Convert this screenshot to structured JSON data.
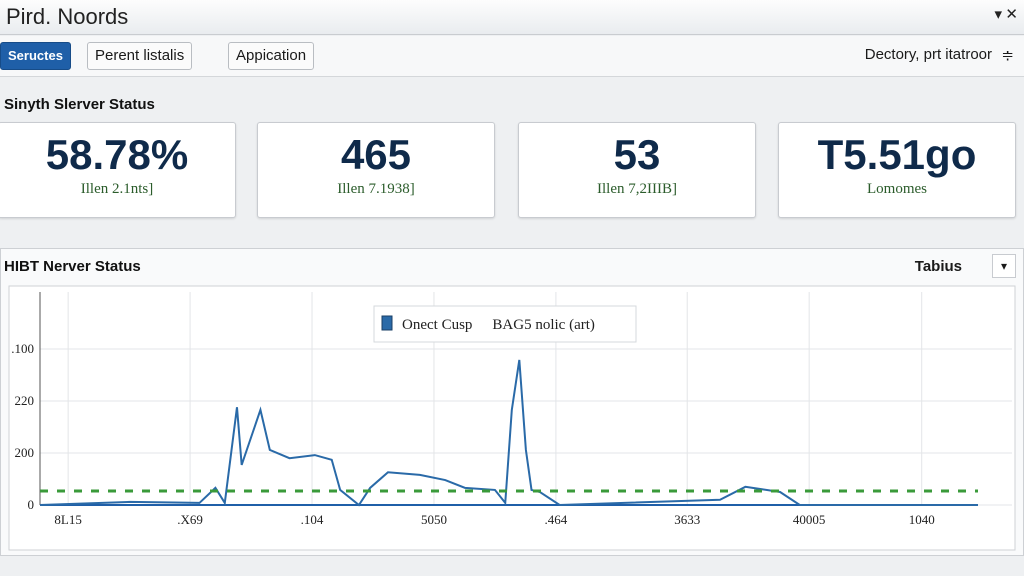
{
  "header": {
    "title": "Pird. Noords"
  },
  "tabs": [
    "Seructes",
    "Perent listalis",
    "Appication"
  ],
  "toolbar_right": "Dectory, prt itatroor",
  "summary": {
    "title": "Sinyth Slerver Status",
    "cards": [
      {
        "value": "58.78%",
        "caption": "Illen 2.1nts]"
      },
      {
        "value": "465",
        "caption": "Illen 7.1938]"
      },
      {
        "value": "53",
        "caption": "Illen 7,2IIIB]"
      },
      {
        "value": "T5.51go",
        "caption": "Lomomes"
      }
    ]
  },
  "panel": {
    "title": "HIBT Nerver Status",
    "dropdown": "Tabius"
  },
  "chart_data": {
    "type": "line",
    "xlim": [
      0,
      100
    ],
    "xticks": [
      {
        "value": 3,
        "label": "8L15"
      },
      {
        "value": 16,
        "label": ".X69"
      },
      {
        "value": 29,
        "label": ".104"
      },
      {
        "value": 42,
        "label": "5050"
      },
      {
        "value": 55,
        "label": ".464"
      },
      {
        "value": 69,
        "label": "3633"
      },
      {
        "value": 82,
        "label": "40005"
      },
      {
        "value": 94,
        "label": "1040"
      }
    ],
    "ylim": [
      0,
      400
    ],
    "yticks": [
      0,
      {
        "value": 100,
        "label": "200"
      },
      {
        "value": 200,
        "label": "220"
      },
      {
        "value": 300,
        "label": ".100"
      }
    ],
    "grid": true,
    "series": [
      {
        "name": "Onect Cusp",
        "color": "#2a6aa8",
        "x": [
          0,
          9.6,
          17,
          18.7,
          19.7,
          21,
          21.5,
          23.5,
          24.5,
          26.6,
          29.3,
          31.1,
          32,
          34,
          35.2,
          37.1,
          40.5,
          43.2,
          45.3,
          48.5,
          49.6,
          50.3,
          51.1,
          51.8,
          52.4,
          53.3,
          55.4,
          72.5,
          75.2,
          78.9,
          81,
          100
        ],
        "values": [
          0,
          6,
          4,
          33,
          4,
          188,
          77,
          183,
          106,
          90,
          96,
          87,
          29,
          0,
          33,
          63,
          58,
          48,
          33,
          29,
          4,
          183,
          279,
          106,
          29,
          25,
          0,
          10,
          35,
          25,
          0,
          0
        ]
      },
      {
        "name": "BAG5 nolic (art)",
        "color": "#3a9a3a",
        "dashed": true,
        "x": [
          0,
          100
        ],
        "values": [
          27,
          27
        ]
      }
    ]
  }
}
